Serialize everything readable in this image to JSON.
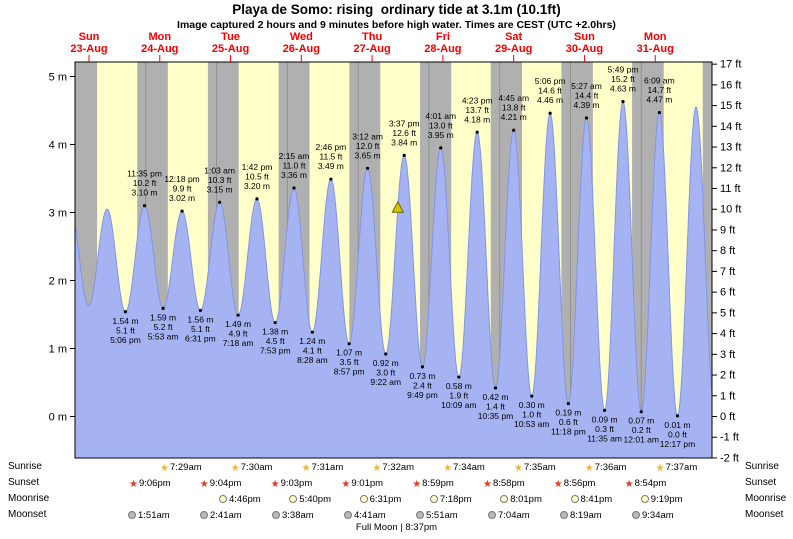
{
  "title": "Playa de Somo: rising  ordinary tide at 3.1m (10.1ft)",
  "subtitle": "Image captured 2 hours and 9 minutes before high water. Times are CEST (UTC +2.0hrs)",
  "chart_data": {
    "type": "area",
    "title": "Playa de Somo: rising ordinary tide at 3.1m (10.1ft)",
    "ylabel_left_unit": "m",
    "ylabel_right_unit": "ft",
    "y_axis_m": [
      "5 m",
      "4 m",
      "3 m",
      "2 m",
      "1 m",
      "0 m"
    ],
    "y_axis_ft": [
      "17 ft",
      "16 ft",
      "15 ft",
      "14 ft",
      "13 ft",
      "12 ft",
      "11 ft",
      "10 ft",
      "9 ft",
      "8 ft",
      "7 ft",
      "6 ft",
      "5 ft",
      "4 ft",
      "3 ft",
      "2 ft",
      "1 ft",
      "0 ft",
      "-1 ft",
      "-2 ft"
    ],
    "days": [
      {
        "name": "Sun",
        "date": "23-Aug"
      },
      {
        "name": "Mon",
        "date": "24-Aug"
      },
      {
        "name": "Tue",
        "date": "25-Aug"
      },
      {
        "name": "Wed",
        "date": "26-Aug"
      },
      {
        "name": "Thu",
        "date": "27-Aug"
      },
      {
        "name": "Fri",
        "date": "28-Aug"
      },
      {
        "name": "Sat",
        "date": "29-Aug"
      },
      {
        "name": "Sun",
        "date": "30-Aug"
      },
      {
        "name": "Mon",
        "date": "31-Aug"
      }
    ],
    "extremes": [
      {
        "type": "low",
        "day": 0,
        "hour": 17.1,
        "height": 1.54,
        "m": "1.54 m",
        "ft": "5.1 ft",
        "time": "5:06 pm"
      },
      {
        "type": "high",
        "day": 0,
        "hour": 23.58,
        "height": 3.1,
        "m": "3.10 m",
        "ft": "10.2 ft",
        "time": "11:35 pm"
      },
      {
        "type": "low",
        "day": 1,
        "hour": 5.88,
        "height": 1.59,
        "m": "1.59 m",
        "ft": "5.2 ft",
        "time": "5:53 am"
      },
      {
        "type": "high",
        "day": 1,
        "hour": 12.3,
        "height": 3.02,
        "m": "3.02 m",
        "ft": "9.9 ft",
        "time": "12:18 pm"
      },
      {
        "type": "low",
        "day": 1,
        "hour": 18.52,
        "height": 1.56,
        "m": "1.56 m",
        "ft": "5.1 ft",
        "time": "6:31 pm"
      },
      {
        "type": "high",
        "day": 2,
        "hour": 1.05,
        "height": 3.15,
        "m": "3.15 m",
        "ft": "10.3 ft",
        "time": "1:03 am"
      },
      {
        "type": "low",
        "day": 2,
        "hour": 7.3,
        "height": 1.49,
        "m": "1.49 m",
        "ft": "4.9 ft",
        "time": "7:18 am"
      },
      {
        "type": "high",
        "day": 2,
        "hour": 13.7,
        "height": 3.2,
        "m": "3.20 m",
        "ft": "10.5 ft",
        "time": "1:42 pm"
      },
      {
        "type": "low",
        "day": 2,
        "hour": 19.88,
        "height": 1.38,
        "m": "1.38 m",
        "ft": "4.5 ft",
        "time": "7:53 pm"
      },
      {
        "type": "high",
        "day": 3,
        "hour": 2.25,
        "height": 3.36,
        "m": "3.36 m",
        "ft": "11.0 ft",
        "time": "2:15 am"
      },
      {
        "type": "low",
        "day": 3,
        "hour": 8.47,
        "height": 1.24,
        "m": "1.24 m",
        "ft": "4.1 ft",
        "time": "8:28 am"
      },
      {
        "type": "high",
        "day": 3,
        "hour": 14.77,
        "height": 3.49,
        "m": "3.49 m",
        "ft": "11.5 ft",
        "time": "2:46 pm"
      },
      {
        "type": "low",
        "day": 3,
        "hour": 20.95,
        "height": 1.07,
        "m": "1.07 m",
        "ft": "3.5 ft",
        "time": "8:57 pm"
      },
      {
        "type": "high",
        "day": 4,
        "hour": 3.2,
        "height": 3.65,
        "m": "3.65 m",
        "ft": "12.0 ft",
        "time": "3:12 am"
      },
      {
        "type": "low",
        "day": 4,
        "hour": 9.37,
        "height": 0.92,
        "m": "0.92 m",
        "ft": "3.0 ft",
        "time": "9:22 am"
      },
      {
        "type": "high",
        "day": 4,
        "hour": 15.62,
        "height": 3.84,
        "m": "3.84 m",
        "ft": "12.6 ft",
        "time": "3:37 pm"
      },
      {
        "type": "low",
        "day": 4,
        "hour": 21.82,
        "height": 0.73,
        "m": "0.73 m",
        "ft": "2.4 ft",
        "time": "9:49 pm"
      },
      {
        "type": "high",
        "day": 5,
        "hour": 4.02,
        "height": 3.95,
        "m": "3.95 m",
        "ft": "13.0 ft",
        "time": "4:01 am"
      },
      {
        "type": "low",
        "day": 5,
        "hour": 10.15,
        "height": 0.58,
        "m": "0.58 m",
        "ft": "1.9 ft",
        "time": "10:09 am"
      },
      {
        "type": "high",
        "day": 5,
        "hour": 16.38,
        "height": 4.18,
        "m": "4.18 m",
        "ft": "13.7 ft",
        "time": "4:23 pm"
      },
      {
        "type": "low",
        "day": 5,
        "hour": 22.58,
        "height": 0.42,
        "m": "0.42 m",
        "ft": "1.4 ft",
        "time": "10:35 pm"
      },
      {
        "type": "high",
        "day": 6,
        "hour": 4.75,
        "height": 4.21,
        "m": "4.21 m",
        "ft": "13.8 ft",
        "time": "4:45 am"
      },
      {
        "type": "low",
        "day": 6,
        "hour": 10.88,
        "height": 0.3,
        "m": "0.30 m",
        "ft": "1.0 ft",
        "time": "10:53 am"
      },
      {
        "type": "high",
        "day": 6,
        "hour": 17.1,
        "height": 4.46,
        "m": "4.46 m",
        "ft": "14.6 ft",
        "time": "5:06 pm"
      },
      {
        "type": "low",
        "day": 6,
        "hour": 23.3,
        "height": 0.19,
        "m": "0.19 m",
        "ft": "0.6 ft",
        "time": "11:18 pm"
      },
      {
        "type": "high",
        "day": 7,
        "hour": 5.45,
        "height": 4.39,
        "m": "4.39 m",
        "ft": "14.4 ft",
        "time": "5:27 am"
      },
      {
        "type": "low",
        "day": 7,
        "hour": 11.58,
        "height": 0.09,
        "m": "0.09 m",
        "ft": "0.3 ft",
        "time": "11:35 am"
      },
      {
        "type": "high",
        "day": 7,
        "hour": 17.82,
        "height": 4.63,
        "m": "4.63 m",
        "ft": "15.2 ft",
        "time": "5:49 pm"
      },
      {
        "type": "low",
        "day": 8,
        "hour": 0.02,
        "height": 0.07,
        "m": "0.07 m",
        "ft": "0.2 ft",
        "time": "12:01 am"
      },
      {
        "type": "high",
        "day": 8,
        "hour": 6.15,
        "height": 4.47,
        "m": "4.47 m",
        "ft": "14.7 ft",
        "time": "6:09 am"
      },
      {
        "type": "low",
        "day": 8,
        "hour": 12.28,
        "height": 0.01,
        "m": "0.01 m",
        "ft": "0.0 ft",
        "time": "12:17 pm"
      }
    ],
    "curve_edges": {
      "before": [
        {
          "day": -1,
          "hour": 22.33,
          "height": 3.08
        },
        {
          "day": 0,
          "hour": 4.58,
          "height": 1.62
        },
        {
          "day": 0,
          "hour": 10.88,
          "height": 3.05
        }
      ],
      "after": [
        {
          "day": 8,
          "hour": 18.58,
          "height": 4.55
        },
        {
          "day": 9,
          "hour": 0.83,
          "height": 0.15
        }
      ]
    },
    "current_marker": {
      "day": 4,
      "hour": 13.47,
      "height": 3.07
    },
    "night_bands": [
      {
        "from": [
          0,
          0
        ],
        "to": [
          0,
          7.48
        ]
      },
      {
        "from": [
          0,
          21.1
        ],
        "to": [
          1,
          7.48
        ]
      },
      {
        "from": [
          1,
          21.07
        ],
        "to": [
          2,
          7.5
        ]
      },
      {
        "from": [
          2,
          21.05
        ],
        "to": [
          3,
          7.52
        ]
      },
      {
        "from": [
          3,
          21.02
        ],
        "to": [
          4,
          7.53
        ]
      },
      {
        "from": [
          4,
          20.98
        ],
        "to": [
          5,
          7.57
        ]
      },
      {
        "from": [
          5,
          20.97
        ],
        "to": [
          6,
          7.58
        ]
      },
      {
        "from": [
          6,
          20.93
        ],
        "to": [
          7,
          7.6
        ]
      },
      {
        "from": [
          7,
          20.9
        ],
        "to": [
          8,
          7.62
        ]
      },
      {
        "from": [
          8,
          20.87
        ],
        "to": [
          9,
          0
        ]
      }
    ],
    "colors": {
      "day_bg": "#ffffc9",
      "night_bg": "#b0b0b0",
      "tide_fill": "#a6b3f3",
      "tide_edge": "#8295e8",
      "day_label": "#f00000",
      "marker_fill": "#d5c506",
      "marker_edge": "#6f6703",
      "axis": "#000000"
    }
  },
  "astro": {
    "sunrise": {
      "label": "Sunrise",
      "icon": "sunrise-star-icon",
      "icon_color": "#f7b32a",
      "times": [
        "7:29am",
        "7:30am",
        "7:31am",
        "7:32am",
        "7:34am",
        "7:35am",
        "7:36am",
        "7:37am"
      ]
    },
    "sunset": {
      "label": "Sunset",
      "icon": "sunset-star-icon",
      "icon_color": "#e8381f",
      "times": [
        "9:06pm",
        "9:04pm",
        "9:03pm",
        "9:01pm",
        "8:59pm",
        "8:58pm",
        "8:56pm",
        "8:54pm"
      ]
    },
    "moonrise": {
      "label": "Moonrise",
      "icon": "moonrise-circle-icon",
      "icon_color": "#ffffc8",
      "times": [
        "4:46pm",
        "5:40pm",
        "6:31pm",
        "7:18pm",
        "8:01pm",
        "8:41pm",
        "9:19pm"
      ]
    },
    "moonset": {
      "label": "Moonset",
      "icon": "moonset-circle-icon",
      "icon_color": "#b9b9b9",
      "times": [
        "1:51am",
        "2:41am",
        "3:38am",
        "4:41am",
        "5:51am",
        "7:04am",
        "8:19am",
        "9:34am"
      ]
    },
    "full_moon": "Full Moon | 8:37pm"
  }
}
